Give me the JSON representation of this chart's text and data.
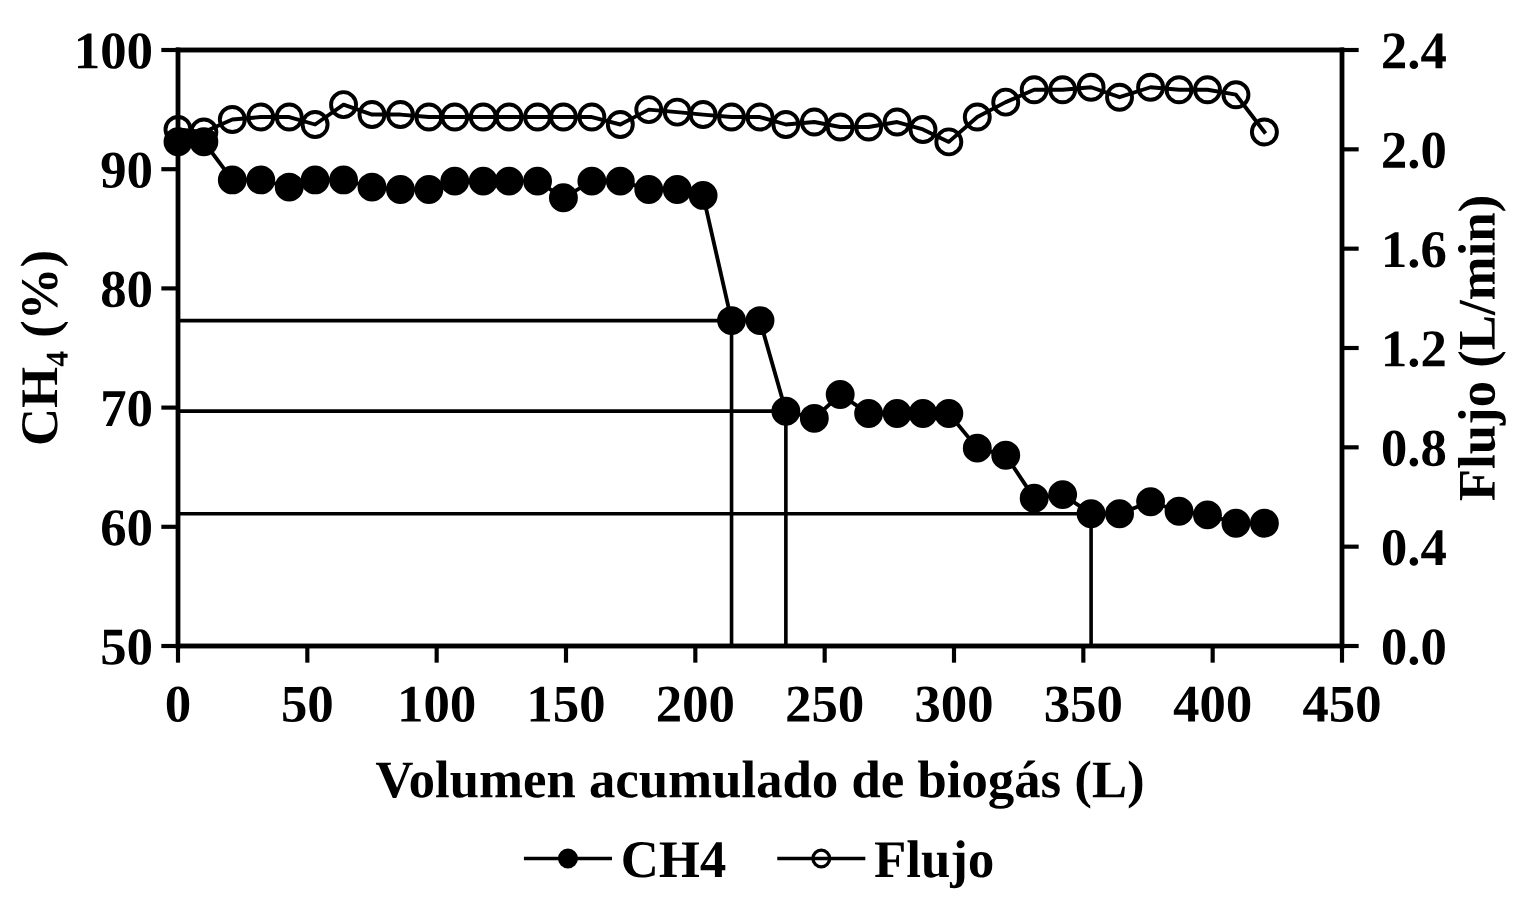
{
  "chart_data": {
    "type": "line",
    "xlabel": "Volumen acumulado de biogás (L)",
    "ylabel": "CH₄ (%)",
    "y2label": "Flujo (L/min)",
    "x": [
      0,
      10,
      21,
      32,
      43,
      53,
      64,
      75,
      86,
      97,
      107,
      118,
      128,
      139,
      149,
      160,
      171,
      182,
      193,
      203,
      214,
      225,
      235,
      246,
      256,
      267,
      278,
      288,
      298,
      309,
      320,
      331,
      342,
      353,
      364,
      376,
      387,
      398,
      409,
      420
    ],
    "series": [
      {
        "name": "CH4",
        "color": "#000000",
        "marker": "circle",
        "values": [
          92.3,
          92.3,
          89.1,
          89.1,
          88.5,
          89.1,
          89.1,
          88.5,
          88.3,
          88.3,
          89.0,
          89.0,
          89.0,
          89.0,
          87.6,
          89.0,
          89.0,
          88.3,
          88.3,
          87.8,
          77.3,
          77.3,
          69.7,
          69.1,
          71.1,
          69.5,
          69.5,
          69.5,
          69.5,
          66.6,
          66.0,
          62.4,
          62.7,
          61.1,
          61.1,
          62.1,
          61.3,
          61.0,
          60.3,
          60.3
        ]
      },
      {
        "name": "Flujo",
        "color": "#000000",
        "marker": "circle",
        "axis": "y2",
        "values": [
          2.08,
          2.07,
          2.12,
          2.13,
          2.13,
          2.1,
          2.18,
          2.14,
          2.14,
          2.13,
          2.13,
          2.13,
          2.13,
          2.13,
          2.13,
          2.13,
          2.1,
          2.16,
          2.15,
          2.14,
          2.13,
          2.13,
          2.1,
          2.11,
          2.09,
          2.09,
          2.11,
          2.08,
          2.03,
          2.13,
          2.19,
          2.24,
          2.24,
          2.25,
          2.21,
          2.25,
          2.24,
          2.24,
          2.22,
          2.07
        ]
      },
      {
        "type": "line",
        "color": "#000000",
        "marker": "none",
        "x": [
          0,
          214,
          214
        ],
        "values": [
          77.3,
          77.3,
          50
        ]
      },
      {
        "type": "line",
        "color": "#000000",
        "marker": "none",
        "x": [
          0,
          235,
          235
        ],
        "values": [
          69.7,
          69.7,
          50
        ]
      },
      {
        "type": "line",
        "color": "#000000",
        "marker": "none",
        "x": [
          0,
          353,
          353
        ],
        "values": [
          61.1,
          61.1,
          50
        ]
      }
    ],
    "xlim": [
      0,
      450
    ],
    "xticks": [
      0,
      50,
      100,
      150,
      200,
      250,
      300,
      350,
      400,
      450
    ],
    "ylim": [
      50,
      100
    ],
    "yticks": [
      50,
      60,
      70,
      80,
      90,
      100
    ],
    "y2lim": [
      0,
      2.4
    ],
    "y2ticks": [
      {
        "value": 0,
        "label": "0.0"
      },
      0.4,
      0.8,
      1.2,
      1.6,
      {
        "value": 2,
        "label": "2.0"
      },
      2.4
    ],
    "legend": "bottom",
    "grid": false,
    "line_style": "solid"
  }
}
